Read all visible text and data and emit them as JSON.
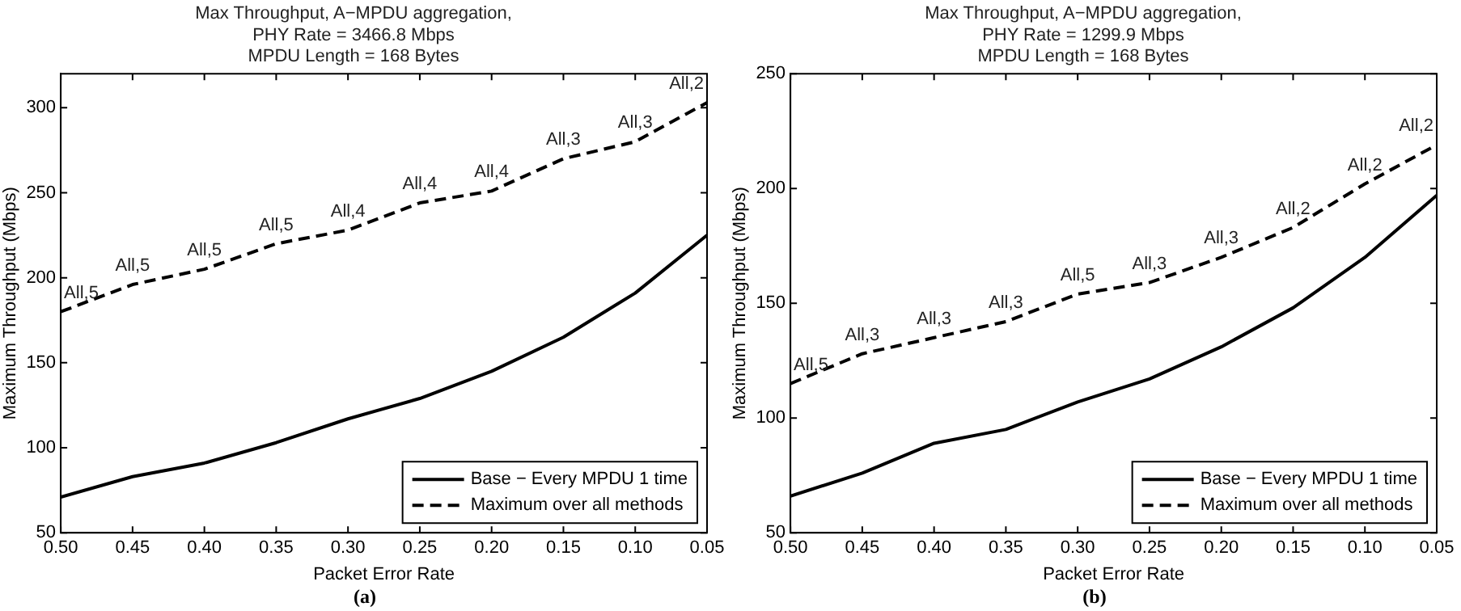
{
  "chart_data": [
    {
      "type": "line",
      "title": "Max Throughput, A−MPDU aggregation,\nPHY Rate = 3466.8 Mbps\nMPDU Length = 168 Bytes",
      "xlabel": "Packet Error Rate",
      "ylabel": "Maximum Throughput (Mbps)",
      "x": [
        0.5,
        0.45,
        0.4,
        0.35,
        0.3,
        0.25,
        0.2,
        0.15,
        0.1,
        0.05
      ],
      "series": [
        {
          "name": "Base − Every MPDU 1 time",
          "color": "#000000",
          "line_style": "solid",
          "values": [
            71,
            83,
            91,
            103,
            117,
            129,
            145,
            165,
            191,
            225
          ]
        },
        {
          "name": "Maximum over all methods",
          "color": "#000000",
          "line_style": "dashed",
          "values": [
            180,
            196,
            205,
            220,
            228,
            244,
            251,
            270,
            280,
            303
          ]
        }
      ],
      "xlim": [
        0.5,
        0.05
      ],
      "xticks": [
        {
          "value": 0.5,
          "label": "0.50"
        },
        {
          "value": 0.45,
          "label": "0.45"
        },
        {
          "value": 0.4,
          "label": "0.40"
        },
        {
          "value": 0.35,
          "label": "0.35"
        },
        {
          "value": 0.3,
          "label": "0.30"
        },
        {
          "value": 0.25,
          "label": "0.25"
        },
        {
          "value": 0.2,
          "label": "0.20"
        },
        {
          "value": 0.15,
          "label": "0.15"
        },
        {
          "value": 0.1,
          "label": "0.10"
        },
        {
          "value": 0.05,
          "label": "0.05"
        }
      ],
      "ylim": [
        50,
        320
      ],
      "yticks": [
        50,
        100,
        150,
        200,
        250,
        300
      ],
      "grid": false,
      "legend": "bottom right",
      "marker": "none",
      "annotations": [
        {
          "text": "All,5",
          "x": 0.5,
          "y": 180
        },
        {
          "text": "All,5",
          "x": 0.45,
          "y": 196
        },
        {
          "text": "All,5",
          "x": 0.4,
          "y": 205
        },
        {
          "text": "All,5",
          "x": 0.35,
          "y": 220
        },
        {
          "text": "All,4",
          "x": 0.3,
          "y": 228
        },
        {
          "text": "All,4",
          "x": 0.25,
          "y": 244
        },
        {
          "text": "All,4",
          "x": 0.2,
          "y": 251
        },
        {
          "text": "All,3",
          "x": 0.15,
          "y": 270
        },
        {
          "text": "All,3",
          "x": 0.1,
          "y": 280
        },
        {
          "text": "All,2",
          "x": 0.05,
          "y": 303
        },
        "(a)"
      ]
    },
    {
      "type": "line",
      "title": "Max Throughput, A−MPDU aggregation,\nPHY Rate = 1299.9 Mbps\nMPDU Length = 168 Bytes",
      "xlabel": "Packet Error Rate",
      "ylabel": "Maximum Throughput (Mbps)",
      "x": [
        0.5,
        0.45,
        0.4,
        0.35,
        0.3,
        0.25,
        0.2,
        0.15,
        0.1,
        0.05
      ],
      "series": [
        {
          "name": "Base − Every MPDU 1 time",
          "color": "#000000",
          "line_style": "solid",
          "values": [
            66,
            76,
            89,
            95,
            107,
            117,
            131,
            148,
            170,
            197
          ]
        },
        {
          "name": "Maximum over all methods",
          "color": "#000000",
          "line_style": "dashed",
          "values": [
            115,
            128,
            135,
            142,
            154,
            159,
            170,
            183,
            202,
            219
          ]
        }
      ],
      "xlim": [
        0.5,
        0.05
      ],
      "xticks": [
        {
          "value": 0.5,
          "label": "0.50"
        },
        {
          "value": 0.45,
          "label": "0.45"
        },
        {
          "value": 0.4,
          "label": "0.40"
        },
        {
          "value": 0.35,
          "label": "0.35"
        },
        {
          "value": 0.3,
          "label": "0.30"
        },
        {
          "value": 0.25,
          "label": "0.25"
        },
        {
          "value": 0.2,
          "label": "0.20"
        },
        {
          "value": 0.15,
          "label": "0.15"
        },
        {
          "value": 0.1,
          "label": "0.10"
        },
        {
          "value": 0.05,
          "label": "0.05"
        }
      ],
      "ylim": [
        50,
        250
      ],
      "yticks": [
        50,
        100,
        150,
        200,
        250
      ],
      "grid": false,
      "legend": "bottom right",
      "marker": "none",
      "annotations": [
        {
          "text": "All,5",
          "x": 0.5,
          "y": 115
        },
        {
          "text": "All,3",
          "x": 0.45,
          "y": 128
        },
        {
          "text": "All,3",
          "x": 0.4,
          "y": 135
        },
        {
          "text": "All,3",
          "x": 0.35,
          "y": 142
        },
        {
          "text": "All,5",
          "x": 0.3,
          "y": 154
        },
        {
          "text": "All,3",
          "x": 0.25,
          "y": 159
        },
        {
          "text": "All,3",
          "x": 0.2,
          "y": 170
        },
        {
          "text": "All,2",
          "x": 0.15,
          "y": 183
        },
        {
          "text": "All,2",
          "x": 0.1,
          "y": 202
        },
        {
          "text": "All,2",
          "x": 0.05,
          "y": 219
        },
        "(b)"
      ]
    }
  ]
}
